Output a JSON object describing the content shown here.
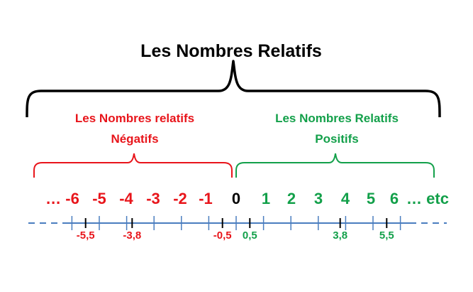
{
  "title": "Les Nombres Relatifs",
  "negative_group": {
    "line1": "Les Nombres relatifs",
    "line2": "Négatifs",
    "color": "#e8151b"
  },
  "positive_group": {
    "line1": "Les Nombres  Relatifs",
    "line2": "Positifs",
    "color": "#13a04a"
  },
  "brace_color": "#000000",
  "axis_color": "#4a7dbf",
  "numbers": [
    {
      "text": "… -6",
      "color": "#e8151b"
    },
    {
      "text": "-5",
      "color": "#e8151b"
    },
    {
      "text": "-4",
      "color": "#e8151b"
    },
    {
      "text": "-3",
      "color": "#e8151b"
    },
    {
      "text": "-2",
      "color": "#e8151b"
    },
    {
      "text": "-1",
      "color": "#e8151b"
    },
    {
      "text": "0",
      "color": "#000000"
    },
    {
      "text": "1",
      "color": "#13a04a"
    },
    {
      "text": "2",
      "color": "#13a04a"
    },
    {
      "text": "3",
      "color": "#13a04a"
    },
    {
      "text": "4",
      "color": "#13a04a"
    },
    {
      "text": "5",
      "color": "#13a04a"
    },
    {
      "text": "6",
      "color": "#13a04a"
    },
    {
      "text": "… etc",
      "color": "#13a04a"
    }
  ],
  "marked_values": [
    {
      "value": -5.5,
      "label": "-5,5",
      "color": "#e8151b"
    },
    {
      "value": -3.8,
      "label": "-3,8",
      "color": "#e8151b"
    },
    {
      "value": -0.5,
      "label": "-0,5",
      "color": "#e8151b"
    },
    {
      "value": 0.5,
      "label": "0,5",
      "color": "#13a04a"
    },
    {
      "value": 3.8,
      "label": "3,8",
      "color": "#13a04a"
    },
    {
      "value": 5.5,
      "label": "5,5",
      "color": "#13a04a"
    }
  ]
}
